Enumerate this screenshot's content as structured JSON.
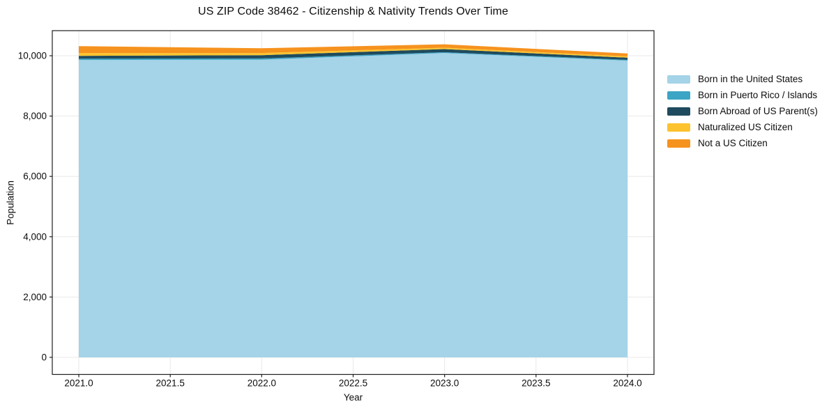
{
  "chart_data": {
    "type": "area",
    "stacked": true,
    "title": "US ZIP Code 38462 - Citizenship & Nativity Trends Over Time",
    "xlabel": "Year",
    "ylabel": "Population",
    "x": [
      2021,
      2022,
      2023,
      2024
    ],
    "series": [
      {
        "name": "Born in the United States",
        "color": "#a5d3e8",
        "values": [
          9860,
          9870,
          10090,
          9840
        ]
      },
      {
        "name": "Born in Puerto Rico / Islands",
        "color": "#3ca5c5",
        "values": [
          45,
          40,
          25,
          25
        ]
      },
      {
        "name": "Born Abroad of US Parent(s)",
        "color": "#1f4b5e",
        "values": [
          90,
          110,
          105,
          70
        ]
      },
      {
        "name": "Naturalized US Citizen",
        "color": "#fcc32f",
        "values": [
          95,
          70,
          45,
          45
        ]
      },
      {
        "name": "Not a US Citizen",
        "color": "#f6921e",
        "values": [
          230,
          160,
          115,
          95
        ]
      }
    ],
    "x_ticks": [
      2021.0,
      2021.5,
      2022.0,
      2022.5,
      2023.0,
      2023.5,
      2024.0
    ],
    "x_tick_labels": [
      "2021.0",
      "2021.5",
      "2022.0",
      "2022.5",
      "2023.0",
      "2023.5",
      "2024.0"
    ],
    "y_ticks": [
      0,
      2000,
      4000,
      6000,
      8000,
      10000
    ],
    "y_tick_labels": [
      "0",
      "2,000",
      "4,000",
      "6,000",
      "8,000",
      "10,000"
    ],
    "xlim": [
      2020.855,
      2024.145
    ],
    "ylim": [
      -566,
      10832
    ],
    "grid": true,
    "legend_position": "right"
  },
  "colors": {
    "background": "#ffffff",
    "grid": "#e8e8e8",
    "spine": "#1f1f1f",
    "tick": "#1f1f1f",
    "text": "#0c0c0c"
  }
}
